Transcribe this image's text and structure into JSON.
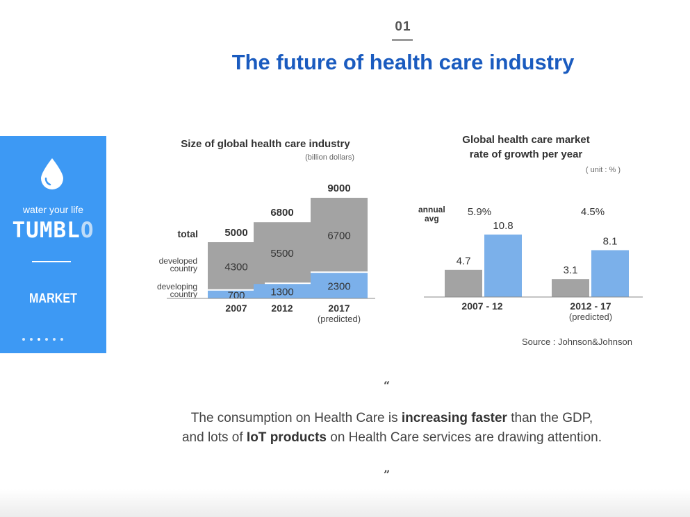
{
  "page": {
    "number": "01",
    "title": "The future of health care industry"
  },
  "sidebar": {
    "tagline": "water your life",
    "brand_main": "TUMBL",
    "brand_last": "O",
    "section": "MARKET",
    "icon": "water-drop-icon",
    "dots": [
      false,
      false,
      true,
      false,
      false,
      false
    ],
    "color": "#3d99f4"
  },
  "chart_data": [
    {
      "type": "bar",
      "stacked": true,
      "title": "Size of global health care industry",
      "unit": "(billion dollars)",
      "categories": [
        "2007",
        "2012",
        "2017"
      ],
      "category_notes": [
        "",
        "",
        "(predicted)"
      ],
      "total_label": "total",
      "series": [
        {
          "name": "developing country",
          "values": [
            700,
            1300,
            2300
          ],
          "color": "#7bb0ea"
        },
        {
          "name": "developed country",
          "values": [
            4300,
            5500,
            6700
          ],
          "color": "#a3a3a3"
        }
      ],
      "totals": [
        5000,
        6800,
        9000
      ]
    },
    {
      "type": "bar",
      "title_line1": "Global health care market",
      "title_line2": "rate of growth per year",
      "unit": "( unit : % )",
      "avg_label_line1": "annual",
      "avg_label_line2": "avg",
      "categories": [
        "2007 - 12",
        "2012 - 17"
      ],
      "category_notes": [
        "",
        "(predicted)"
      ],
      "annual_avg": [
        "5.9%",
        "4.5%"
      ],
      "series": [
        {
          "values": [
            4.7,
            3.1
          ],
          "color": "#a3a3a3"
        },
        {
          "values": [
            10.8,
            8.1
          ],
          "color": "#7bb0ea"
        }
      ],
      "source": "Source : Johnson&Johnson"
    }
  ],
  "quote": {
    "open": "“",
    "close": "”",
    "line1": [
      {
        "text": "The consumption on Health Care is ",
        "bold": false
      },
      {
        "text": "increasing faster",
        "bold": true
      },
      {
        "text": " than the GDP,",
        "bold": false
      }
    ],
    "line2": [
      {
        "text": "and lots of ",
        "bold": false
      },
      {
        "text": "IoT products",
        "bold": true
      },
      {
        "text": " on Health Care services are drawing attention.",
        "bold": false
      }
    ]
  }
}
